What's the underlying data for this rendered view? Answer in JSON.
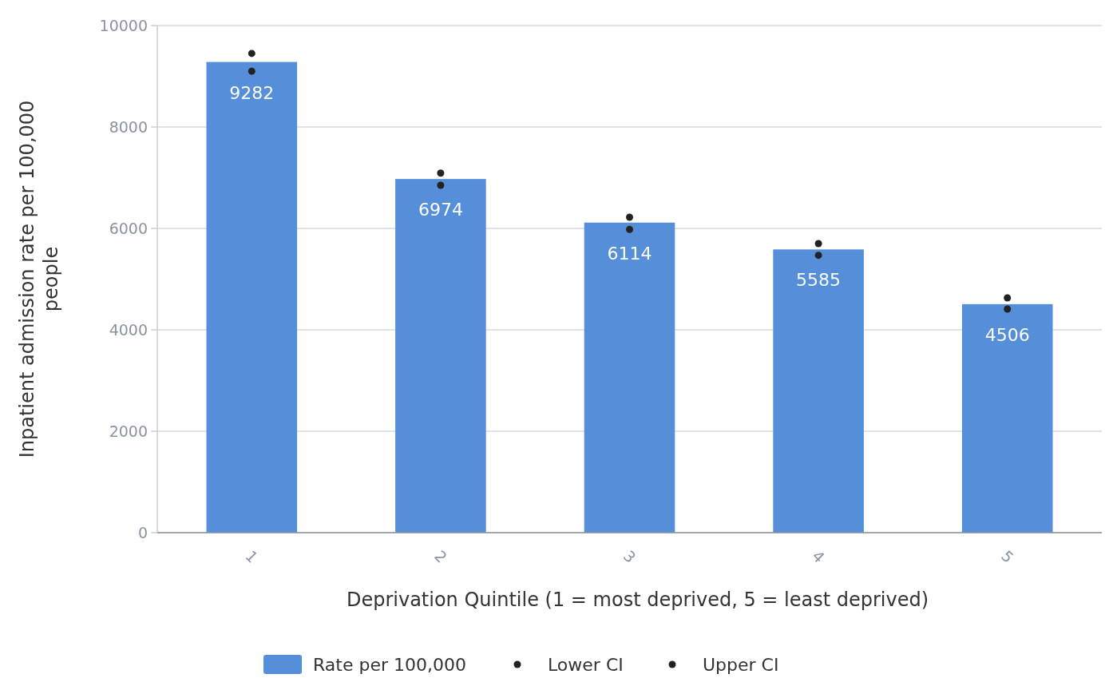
{
  "chart_data": {
    "type": "bar",
    "xlabel": "Deprivation Quintile (1 = most deprived, 5 = least deprived)",
    "ylabel": "Inpatient admission rate per 100,000 people",
    "categories": [
      "1",
      "2",
      "3",
      "4",
      "5"
    ],
    "series": [
      {
        "name": "Rate per 100,000",
        "color": "#558ed9",
        "values": [
          9282,
          6974,
          6114,
          5585,
          4506
        ],
        "value_labels": [
          "9282",
          "6974",
          "6114",
          "5585",
          "4506"
        ]
      },
      {
        "name": "Lower CI",
        "type": "scatter",
        "color": "#222222",
        "x": [
          "1",
          "2",
          "3",
          "4",
          "5"
        ],
        "values": [
          9100,
          6850,
          5980,
          5470,
          4410
        ]
      },
      {
        "name": "Upper CI",
        "type": "scatter",
        "color": "#222222",
        "x": [
          "1",
          "2",
          "3",
          "4",
          "5"
        ],
        "values": [
          9450,
          7090,
          6220,
          5700,
          4630
        ]
      }
    ],
    "ylim": [
      0,
      10000
    ],
    "yticks": [
      0,
      2000,
      4000,
      6000,
      8000,
      10000
    ],
    "grid": "y",
    "legend": "bottom",
    "marker": "circle"
  }
}
